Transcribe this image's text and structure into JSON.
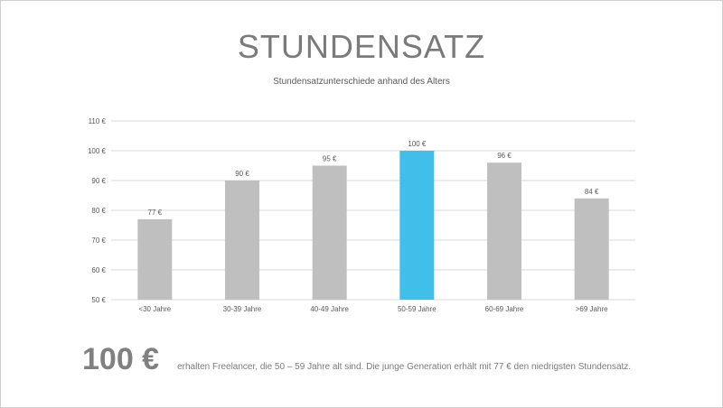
{
  "slide": {
    "title": "STUNDENSATZ",
    "subtitle": "Stundensatzunterschiede  anhand  des Alters",
    "footer_value": "100 €",
    "footer_text": "erhalten  Freelancer,  die 50 – 59 Jahre alt sind.  Die junge  Generation  erhält  mit 77 € den niedrigsten Stundensatz."
  },
  "chart_data": {
    "type": "bar",
    "title": "",
    "xlabel": "",
    "ylabel": "",
    "categories": [
      "<30 Jahre",
      "30-39 Jahre",
      "40-49 Jahre",
      "50-59 Jahre",
      "60-69 Jahre",
      ">69 Jahre"
    ],
    "values": [
      77,
      90,
      95,
      100,
      96,
      84
    ],
    "value_labels": [
      "77 €",
      "90 €",
      "95 €",
      "100 €",
      "96 €",
      "84 €"
    ],
    "ylim": [
      50,
      110
    ],
    "yticks": [
      50,
      60,
      70,
      80,
      90,
      100,
      110
    ],
    "ytick_labels": [
      "50 €",
      "60 €",
      "70 €",
      "80 €",
      "90 €",
      "100 €",
      "110 €"
    ],
    "grid": true,
    "legend": "none",
    "colors": {
      "bar": "#bfbfbf",
      "highlight": "#40bfea",
      "grid": "#d9d9d9",
      "axis_text": "#595959"
    },
    "highlight_index": 3
  }
}
